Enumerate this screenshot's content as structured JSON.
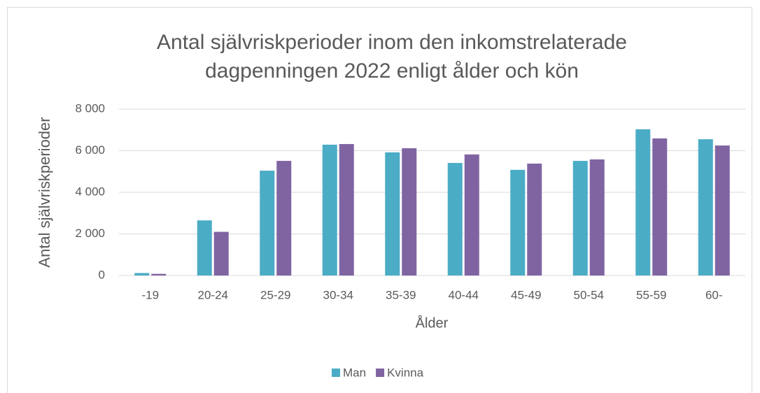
{
  "chart_data": {
    "type": "bar",
    "title": [
      "Antal självriskperioder inom den inkomstrelaterade",
      "dagpenningen 2022 enligt ålder och kön"
    ],
    "x_label": "Ålder",
    "y_label": "Antal självriskperioder",
    "categories": [
      "-19",
      "20-24",
      "25-29",
      "30-34",
      "35-39",
      "40-44",
      "45-49",
      "50-54",
      "55-59",
      "60-"
    ],
    "series": [
      {
        "name": "Man",
        "color": "#4bacc6",
        "values": [
          120,
          2650,
          5040,
          6290,
          5920,
          5410,
          5080,
          5510,
          7030,
          6550
        ]
      },
      {
        "name": "Kvinna",
        "color": "#8064a2",
        "values": [
          80,
          2100,
          5510,
          6320,
          6120,
          5820,
          5380,
          5580,
          6590,
          6250
        ]
      }
    ],
    "ylim": [
      0,
      8000
    ],
    "yticks": [
      0,
      {
        "value": 2000,
        "label": "2 000"
      },
      {
        "value": 4000,
        "label": "4 000"
      },
      {
        "value": 6000,
        "label": "6 000"
      },
      {
        "value": 8000,
        "label": "8 000"
      }
    ],
    "grid": true,
    "legend": "bottom"
  }
}
